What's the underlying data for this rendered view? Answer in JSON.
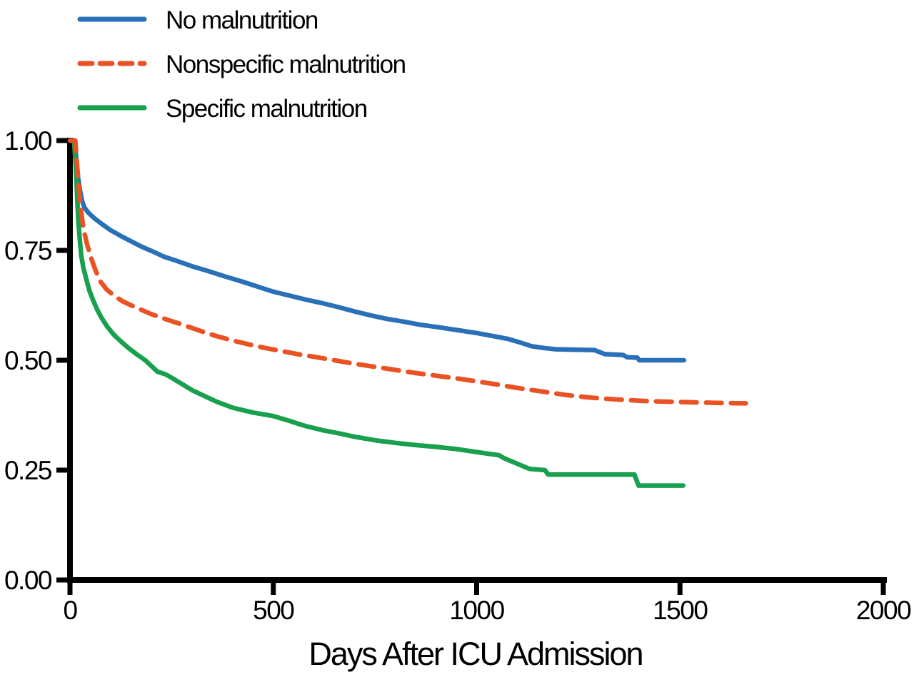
{
  "figure": {
    "background": "#ffffff",
    "axis_color": "#000000"
  },
  "chart_data": {
    "type": "line",
    "subtype": "kaplan-meier-survival",
    "title": "",
    "xlabel": "Days After ICU Admission",
    "ylabel": "",
    "grid": false,
    "legend_position": "top-left",
    "x_axis": {
      "min": 0,
      "max": 2000,
      "ticks": [
        0,
        500,
        1000,
        1500,
        2000
      ],
      "tick_labels": [
        "0",
        "500",
        "1000",
        "1500",
        "2000"
      ]
    },
    "y_axis": {
      "min": 0.0,
      "max": 1.0,
      "ticks": [
        1.0,
        0.75,
        0.5,
        0.25,
        0.0
      ],
      "tick_labels": [
        "1.00",
        "0.75",
        "0.50",
        "0.25",
        "0.00"
      ]
    },
    "series": [
      {
        "name": "No malnutrition",
        "color": "#2a70b8",
        "style": "solid",
        "points": [
          [
            0,
            1.0
          ],
          [
            12,
            1.0
          ],
          [
            16,
            0.955
          ],
          [
            20,
            0.915
          ],
          [
            25,
            0.885
          ],
          [
            30,
            0.862
          ],
          [
            36,
            0.847
          ],
          [
            45,
            0.836
          ],
          [
            60,
            0.823
          ],
          [
            80,
            0.809
          ],
          [
            100,
            0.796
          ],
          [
            125,
            0.783
          ],
          [
            150,
            0.771
          ],
          [
            175,
            0.759
          ],
          [
            200,
            0.749
          ],
          [
            230,
            0.736
          ],
          [
            260,
            0.727
          ],
          [
            300,
            0.714
          ],
          [
            340,
            0.703
          ],
          [
            380,
            0.691
          ],
          [
            420,
            0.68
          ],
          [
            460,
            0.668
          ],
          [
            500,
            0.656
          ],
          [
            540,
            0.647
          ],
          [
            580,
            0.638
          ],
          [
            620,
            0.63
          ],
          [
            660,
            0.621
          ],
          [
            700,
            0.611
          ],
          [
            740,
            0.602
          ],
          [
            780,
            0.594
          ],
          [
            820,
            0.588
          ],
          [
            860,
            0.581
          ],
          [
            900,
            0.576
          ],
          [
            950,
            0.569
          ],
          [
            1000,
            0.562
          ],
          [
            1040,
            0.555
          ],
          [
            1075,
            0.549
          ],
          [
            1105,
            0.541
          ],
          [
            1135,
            0.532
          ],
          [
            1165,
            0.528
          ],
          [
            1195,
            0.525
          ],
          [
            1290,
            0.523
          ],
          [
            1315,
            0.514
          ],
          [
            1360,
            0.512
          ],
          [
            1370,
            0.507
          ],
          [
            1395,
            0.506
          ],
          [
            1400,
            0.5
          ],
          [
            1510,
            0.5
          ]
        ]
      },
      {
        "name": "Nonspecific malnutrition",
        "color": "#ea5223",
        "style": "dashed",
        "points": [
          [
            0,
            1.0
          ],
          [
            13,
            1.0
          ],
          [
            17,
            0.95
          ],
          [
            21,
            0.9
          ],
          [
            26,
            0.848
          ],
          [
            33,
            0.8
          ],
          [
            42,
            0.764
          ],
          [
            52,
            0.733
          ],
          [
            63,
            0.704
          ],
          [
            75,
            0.679
          ],
          [
            90,
            0.661
          ],
          [
            110,
            0.646
          ],
          [
            130,
            0.634
          ],
          [
            160,
            0.621
          ],
          [
            200,
            0.605
          ],
          [
            240,
            0.592
          ],
          [
            280,
            0.58
          ],
          [
            320,
            0.567
          ],
          [
            360,
            0.555
          ],
          [
            400,
            0.545
          ],
          [
            440,
            0.536
          ],
          [
            480,
            0.528
          ],
          [
            520,
            0.521
          ],
          [
            560,
            0.514
          ],
          [
            600,
            0.508
          ],
          [
            650,
            0.5
          ],
          [
            700,
            0.492
          ],
          [
            750,
            0.485
          ],
          [
            800,
            0.478
          ],
          [
            850,
            0.471
          ],
          [
            900,
            0.465
          ],
          [
            950,
            0.459
          ],
          [
            1000,
            0.452
          ],
          [
            1050,
            0.445
          ],
          [
            1100,
            0.437
          ],
          [
            1160,
            0.429
          ],
          [
            1220,
            0.421
          ],
          [
            1280,
            0.415
          ],
          [
            1340,
            0.411
          ],
          [
            1420,
            0.407
          ],
          [
            1500,
            0.405
          ],
          [
            1590,
            0.403
          ],
          [
            1662,
            0.402
          ]
        ]
      },
      {
        "name": "Specific malnutrition",
        "color": "#18a04e",
        "style": "solid",
        "points": [
          [
            0,
            1.0
          ],
          [
            10,
            1.0
          ],
          [
            14,
            0.945
          ],
          [
            17,
            0.885
          ],
          [
            20,
            0.825
          ],
          [
            24,
            0.775
          ],
          [
            28,
            0.737
          ],
          [
            33,
            0.71
          ],
          [
            40,
            0.685
          ],
          [
            48,
            0.658
          ],
          [
            57,
            0.636
          ],
          [
            67,
            0.615
          ],
          [
            78,
            0.596
          ],
          [
            92,
            0.576
          ],
          [
            108,
            0.558
          ],
          [
            125,
            0.543
          ],
          [
            145,
            0.527
          ],
          [
            165,
            0.513
          ],
          [
            185,
            0.5
          ],
          [
            205,
            0.483
          ],
          [
            215,
            0.474
          ],
          [
            235,
            0.468
          ],
          [
            250,
            0.46
          ],
          [
            270,
            0.449
          ],
          [
            300,
            0.432
          ],
          [
            330,
            0.419
          ],
          [
            360,
            0.406
          ],
          [
            400,
            0.392
          ],
          [
            450,
            0.381
          ],
          [
            500,
            0.373
          ],
          [
            540,
            0.362
          ],
          [
            570,
            0.353
          ],
          [
            585,
            0.349
          ],
          [
            620,
            0.341
          ],
          [
            660,
            0.334
          ],
          [
            700,
            0.326
          ],
          [
            750,
            0.318
          ],
          [
            800,
            0.312
          ],
          [
            850,
            0.307
          ],
          [
            900,
            0.303
          ],
          [
            950,
            0.298
          ],
          [
            1000,
            0.291
          ],
          [
            1055,
            0.284
          ],
          [
            1068,
            0.277
          ],
          [
            1130,
            0.253
          ],
          [
            1168,
            0.25
          ],
          [
            1176,
            0.24
          ],
          [
            1388,
            0.24
          ],
          [
            1398,
            0.215
          ],
          [
            1508,
            0.215
          ]
        ]
      }
    ]
  }
}
